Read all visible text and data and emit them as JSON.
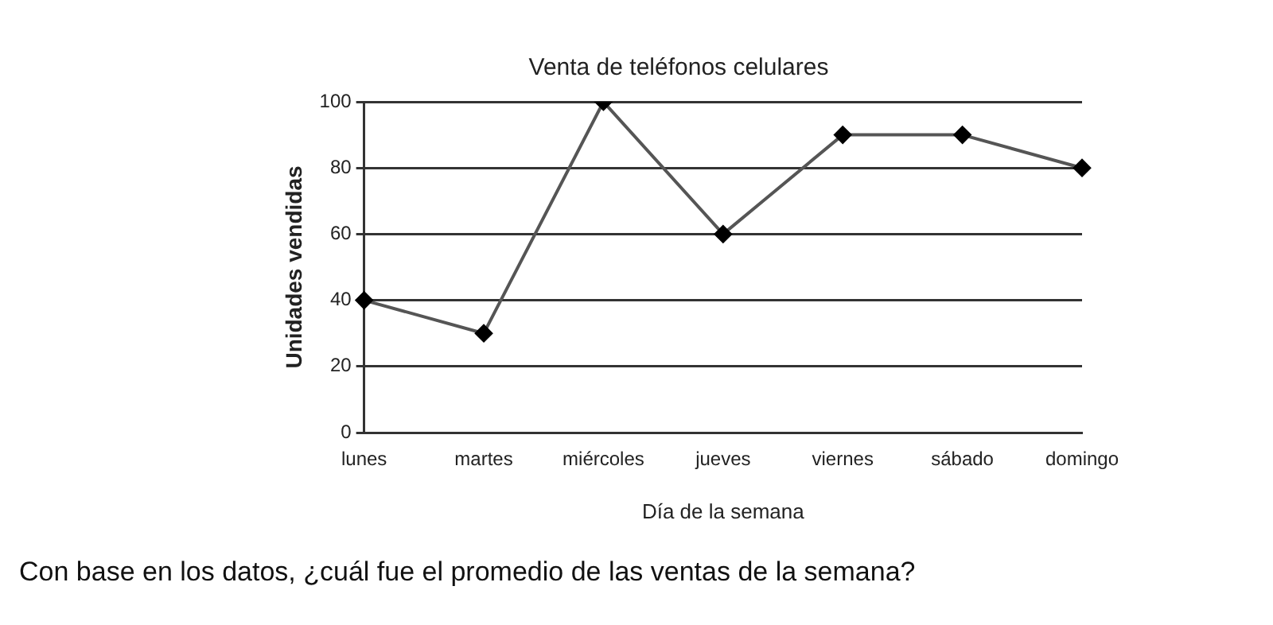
{
  "chart_data": {
    "type": "line",
    "title": "Venta de teléfonos celulares",
    "xlabel": "Día de la semana",
    "ylabel": "Unidades vendidas",
    "categories": [
      "lunes",
      "martes",
      "miércoles",
      "jueves",
      "viernes",
      "sábado",
      "domingo"
    ],
    "series": [
      {
        "color": "#555555",
        "values": [
          40,
          30,
          100,
          60,
          90,
          90,
          80
        ]
      }
    ],
    "ylim": [
      0,
      100
    ],
    "yticks": [
      0,
      20,
      40,
      60,
      80,
      100
    ],
    "grid": "y",
    "legend": false,
    "marker": "diamond",
    "line_style": "solid",
    "annotations": [
      "Con base en los datos, ¿cuál fue el promedio de las ventas de la semana?"
    ]
  }
}
